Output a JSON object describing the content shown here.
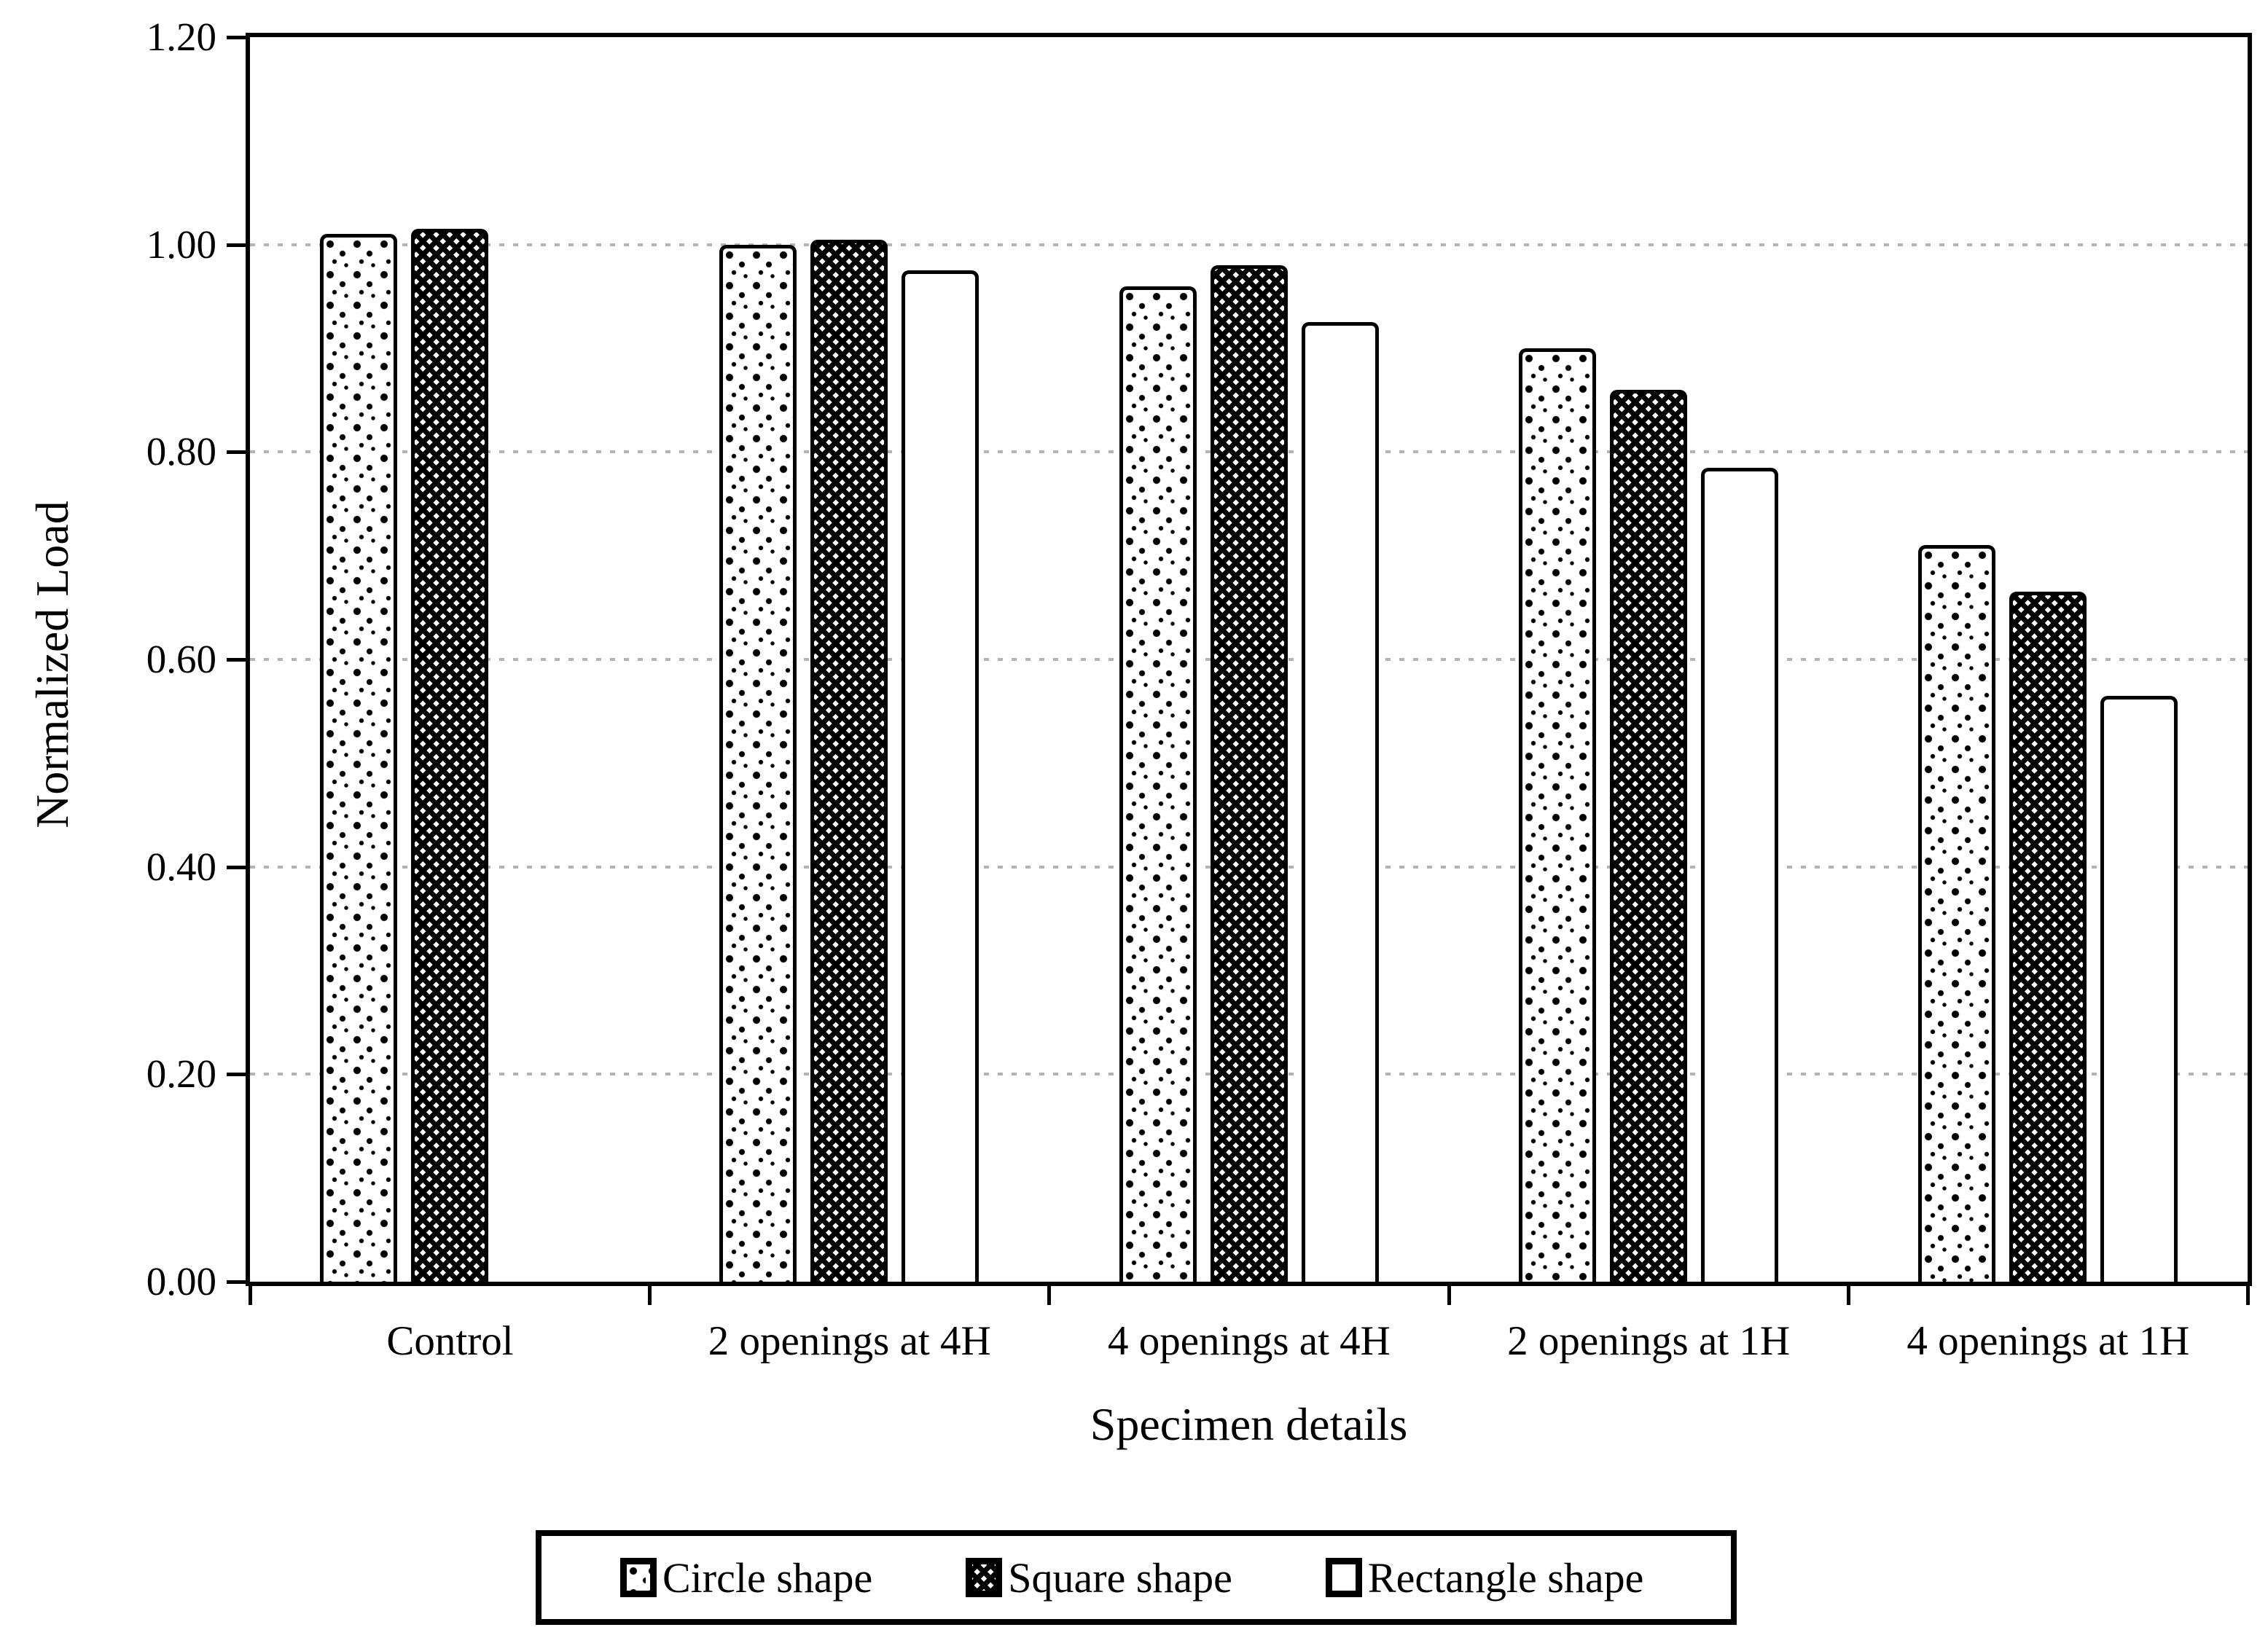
{
  "chart_data": {
    "type": "bar",
    "title": "",
    "xlabel": "Specimen details",
    "ylabel": "Normalized Load",
    "categories": [
      "Control",
      "2 openings at 4H",
      "4 openings at 4H",
      "2 openings at 1H",
      "4 openings at 1H"
    ],
    "series": [
      {
        "name": "Circle shape",
        "pattern": "dots",
        "values": [
          1.01,
          1.0,
          0.96,
          0.9,
          0.71
        ]
      },
      {
        "name": "Square shape",
        "pattern": "weave",
        "values": [
          1.015,
          1.005,
          0.98,
          0.86,
          0.665
        ]
      },
      {
        "name": "Rectangle shape",
        "pattern": "checker",
        "values": [
          null,
          0.975,
          0.925,
          0.785,
          0.565
        ]
      }
    ],
    "ylim": [
      0.0,
      1.2
    ],
    "ytick_step": 0.2,
    "ytick_labels": [
      "0.00",
      "0.20",
      "0.40",
      "0.60",
      "0.80",
      "1.00",
      "1.20"
    ],
    "grid": "horizontal-dotted",
    "gridline_values": [
      0.2,
      0.4,
      0.6,
      0.8,
      1.0
    ],
    "legend_position": "bottom",
    "colors": {
      "axis": "#000000",
      "bar_stroke": "#000000",
      "bar_fill": "#ffffff",
      "grid": "#b4b4b4",
      "text": "#000000",
      "background": "#ffffff"
    }
  }
}
